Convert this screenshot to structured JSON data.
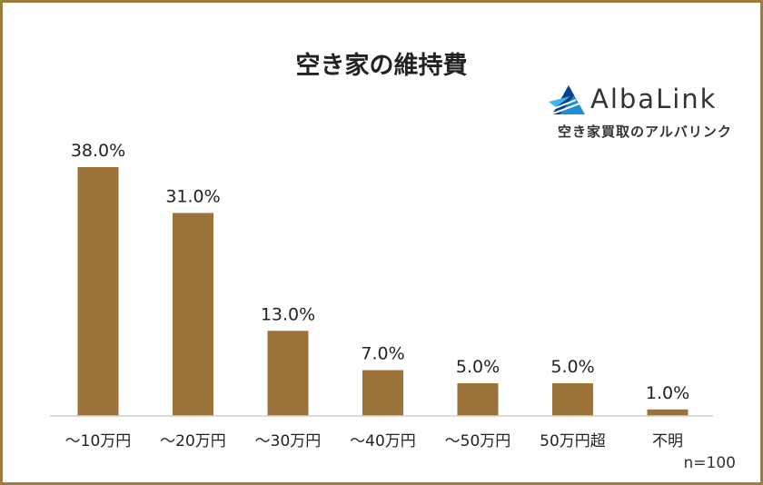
{
  "chart_data": {
    "type": "bar",
    "title": "空き家の維持費",
    "categories": [
      "～10万円",
      "～20万円",
      "～30万円",
      "～40万円",
      "～50万円",
      "50万円超",
      "不明"
    ],
    "values": [
      38.0,
      31.0,
      13.0,
      7.0,
      5.0,
      5.0,
      1.0
    ],
    "value_labels": [
      "38.0%",
      "31.0%",
      "13.0%",
      "7.0%",
      "5.0%",
      "5.0%",
      "1.0%"
    ],
    "xlabel": "",
    "ylabel": "",
    "ylim": [
      0,
      38
    ],
    "grid": false,
    "bar_color": "#9b733a"
  },
  "logo": {
    "name": "AlbaLink",
    "tagline": "空き家買取のアルバリンク",
    "colors": [
      "#1a8fd6",
      "#0a3f8a",
      "#3fb6ea"
    ]
  },
  "note": "n=100",
  "frame_color": "#a07b3f"
}
